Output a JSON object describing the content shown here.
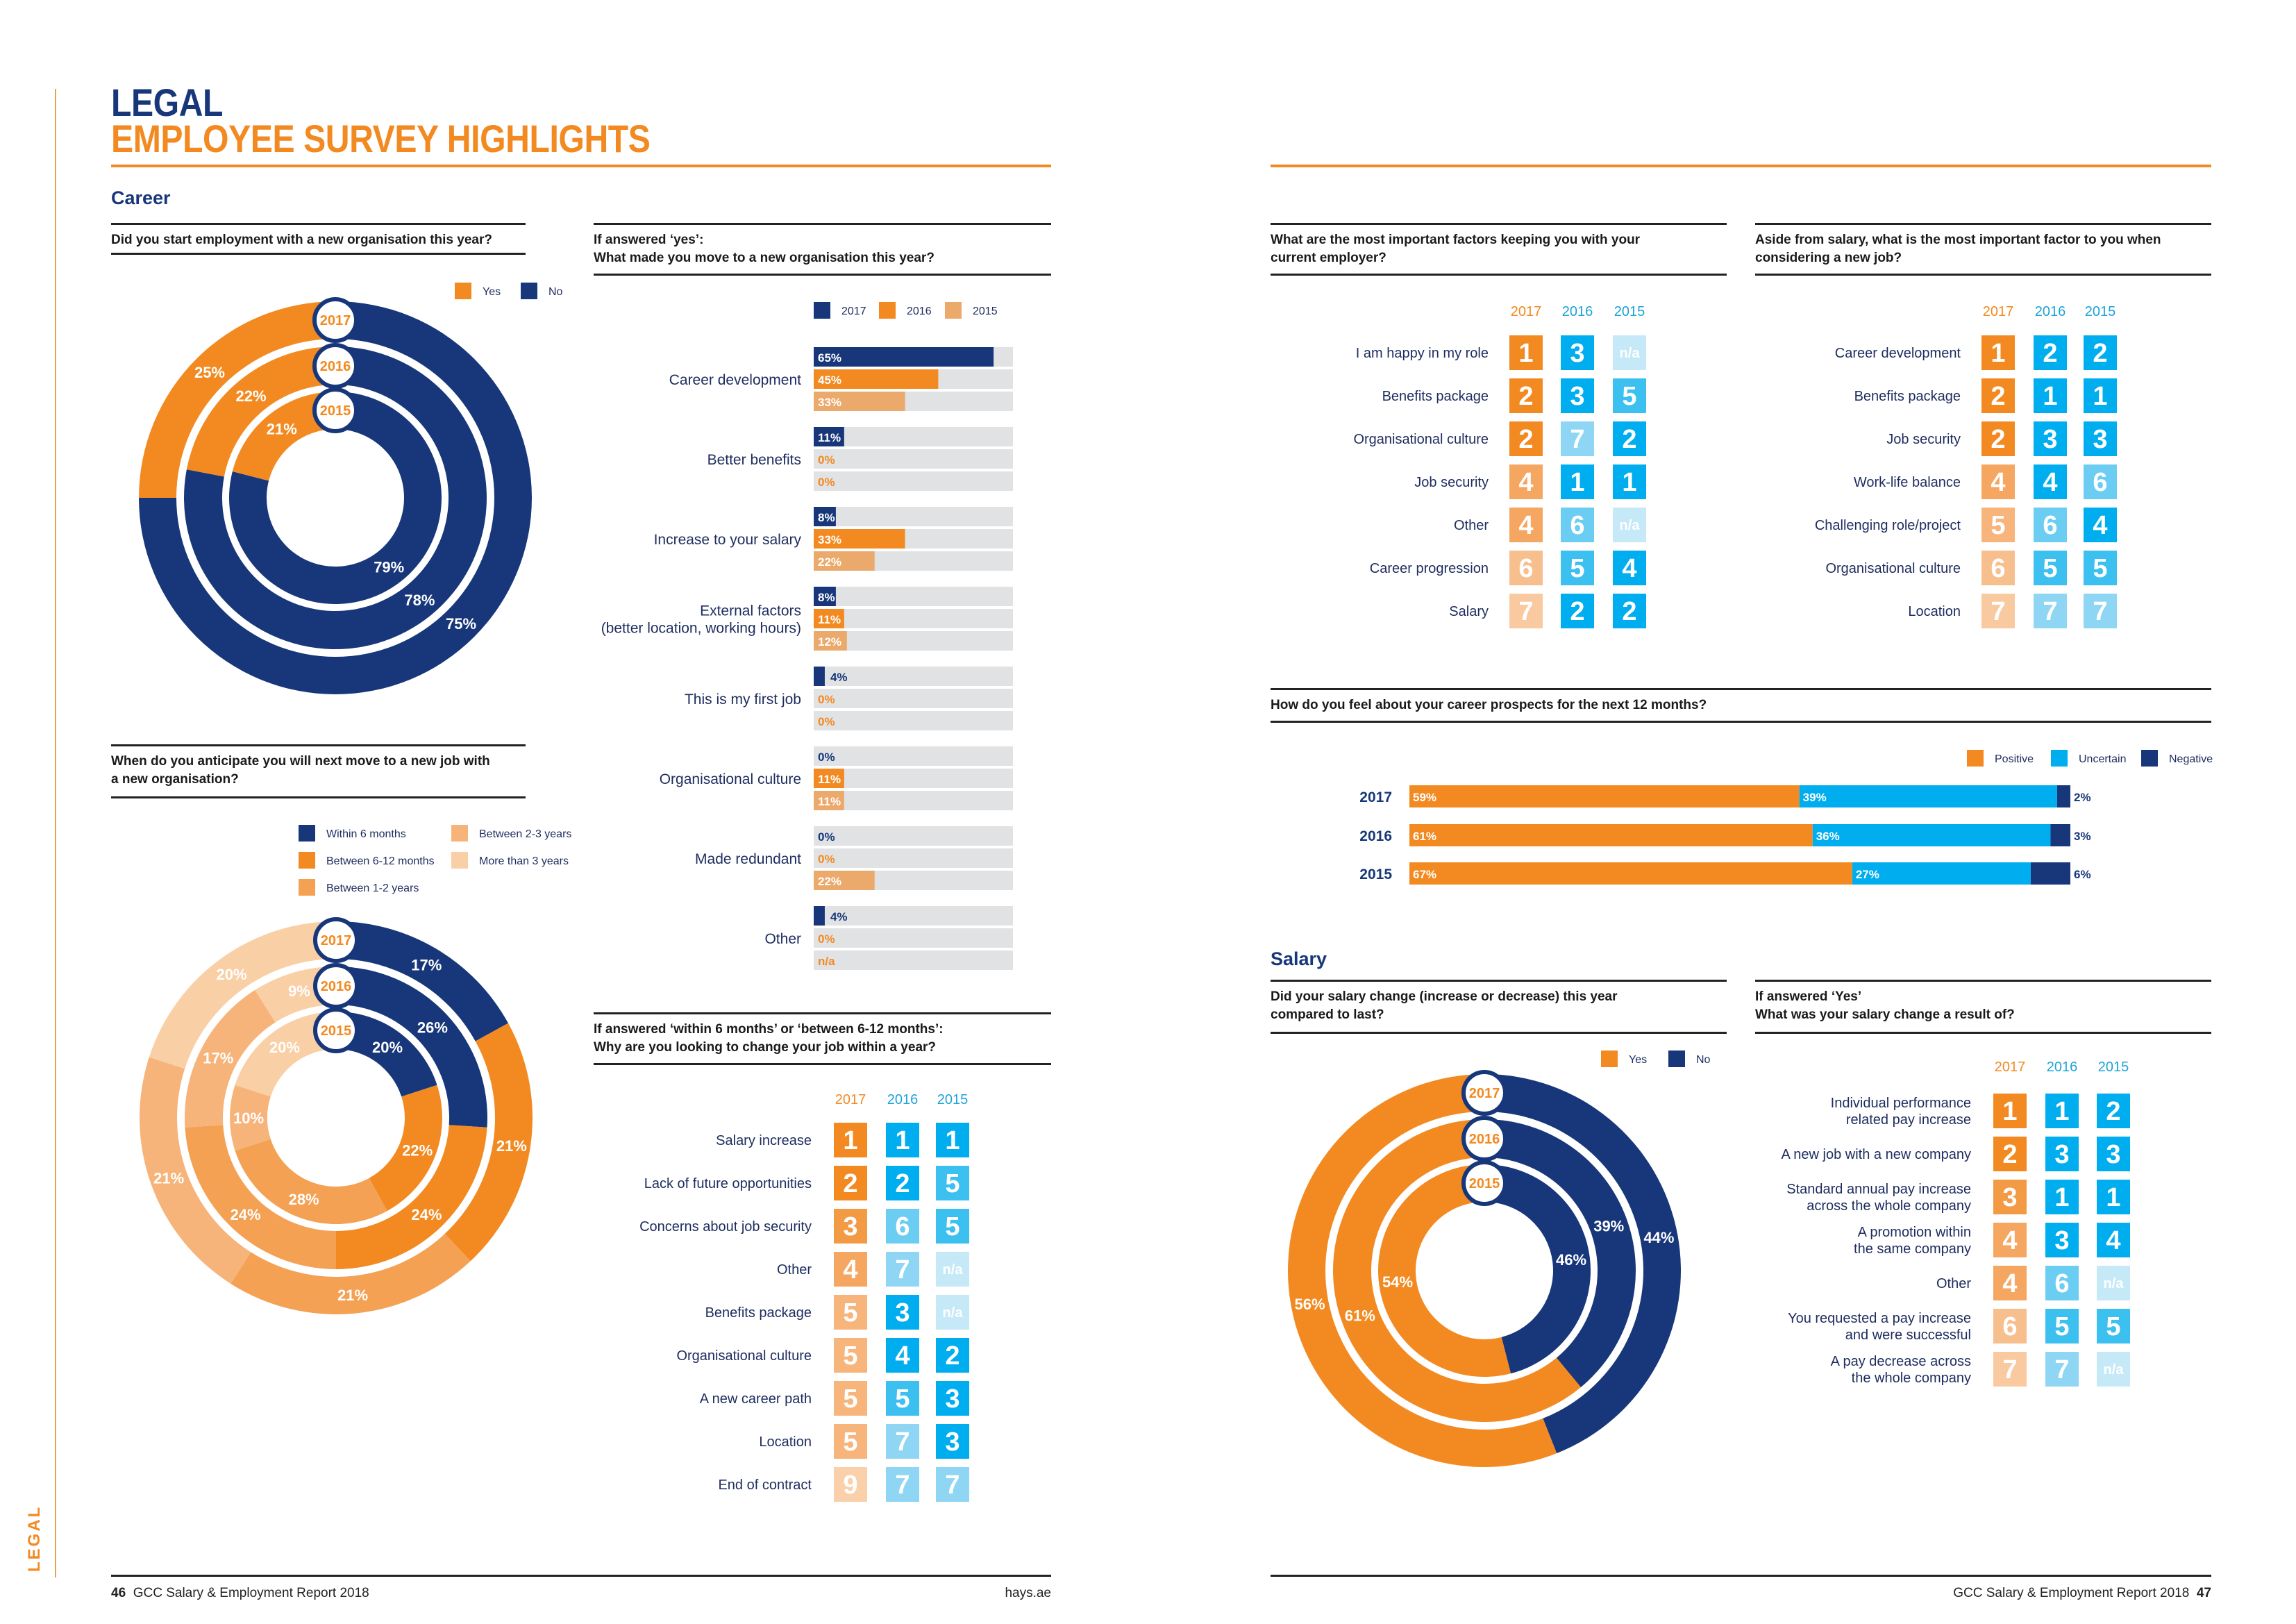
{
  "side_tab": "LEGAL",
  "header": {
    "title": "LEGAL",
    "subtitle": "EMPLOYEE SURVEY HIGHLIGHTS"
  },
  "sections": {
    "career": "Career",
    "salary": "Salary"
  },
  "footer": {
    "left_page": "46",
    "left_text": "GCC Salary & Employment Report 2018",
    "site": "hays.ae",
    "right_text": "GCC Salary & Employment Report 2018",
    "right_page": "47"
  },
  "colors": {
    "navy": "#17377a",
    "orange": "#f28a21",
    "light_orange": "#eba96c",
    "blue": "#00aeef",
    "track": "#e1e2e4",
    "timing": [
      "#17377a",
      "#f28a21",
      "#f4a153",
      "#f7b47a",
      "#f9cfa5"
    ],
    "rank_orange": {
      "1": "#f28a21",
      "2": "#f28a21",
      "3": "#f39a45",
      "4": "#f5a660",
      "5": "#f7b57c",
      "6": "#f8bf8e",
      "7": "#f9c9a0",
      "9": "#fad0aa"
    },
    "rank_blue": {
      "1": "#00aeef",
      "2": "#00aeef",
      "3": "#00aeef",
      "4": "#00aeef",
      "5": "#3cc0f0",
      "6": "#6ccdf2",
      "7": "#8fd6f4",
      "n/a": "#c6e9f8"
    }
  },
  "chart_data": [
    {
      "id": "new_org",
      "type": "pie",
      "variant": "nested-donut",
      "title": "Did you start employment with a new organisation this year?",
      "rings": [
        "2017",
        "2016",
        "2015"
      ],
      "series": [
        {
          "name": "Yes",
          "values": [
            25,
            22,
            21
          ]
        },
        {
          "name": "No",
          "values": [
            75,
            78,
            79
          ]
        }
      ],
      "legend": "top-right"
    },
    {
      "id": "move_reason",
      "type": "bar",
      "orientation": "horizontal",
      "title": "If answered ‘yes’:\nWhat made you move to a new organisation this year?",
      "categories": [
        "Career development",
        "Better benefits",
        "Increase to your salary",
        "External factors\n(better location, working hours)",
        "This is my first job",
        "Organisational culture",
        "Made redundant",
        "Other"
      ],
      "series": [
        {
          "name": "2017",
          "values": [
            65,
            11,
            8,
            8,
            4,
            0,
            0,
            4
          ]
        },
        {
          "name": "2016",
          "values": [
            45,
            0,
            33,
            11,
            0,
            11,
            0,
            0
          ]
        },
        {
          "name": "2015",
          "values": [
            33,
            0,
            22,
            12,
            0,
            11,
            22,
            "n/a"
          ]
        }
      ],
      "unit": "%",
      "xlim": [
        0,
        72
      ],
      "legend": "top"
    },
    {
      "id": "next_move",
      "type": "pie",
      "variant": "nested-donut",
      "title": "When do you anticipate you will next move to a new job with\na new organisation?",
      "rings": [
        "2017",
        "2016",
        "2015"
      ],
      "series": [
        {
          "name": "Within 6 months",
          "values": [
            17,
            26,
            20
          ]
        },
        {
          "name": "Between 6-12 months",
          "values": [
            21,
            24,
            22
          ]
        },
        {
          "name": "Between 1-2 years",
          "values": [
            21,
            24,
            28
          ]
        },
        {
          "name": "Between 2-3 years",
          "values": [
            21,
            17,
            10
          ]
        },
        {
          "name": "More than 3 years",
          "values": [
            20,
            9,
            20
          ]
        }
      ],
      "legend": "top-right"
    },
    {
      "id": "why_change",
      "type": "table",
      "title": "If answered ‘within 6 months’ or ‘between 6-12 months’:\nWhy are you looking to change your job within a year?",
      "columns": [
        "2017",
        "2016",
        "2015"
      ],
      "rows": [
        {
          "label": "Salary increase",
          "values": [
            "1",
            "1",
            "1"
          ]
        },
        {
          "label": "Lack of future opportunities",
          "values": [
            "2",
            "2",
            "5"
          ]
        },
        {
          "label": "Concerns about job security",
          "values": [
            "3",
            "6",
            "5"
          ]
        },
        {
          "label": "Other",
          "values": [
            "4",
            "7",
            "n/a"
          ]
        },
        {
          "label": "Benefits package",
          "values": [
            "5",
            "3",
            "n/a"
          ]
        },
        {
          "label": "Organisational culture",
          "values": [
            "5",
            "4",
            "2"
          ]
        },
        {
          "label": "A new career path",
          "values": [
            "5",
            "5",
            "3"
          ]
        },
        {
          "label": "Location",
          "values": [
            "5",
            "7",
            "3"
          ]
        },
        {
          "label": "End of contract",
          "values": [
            "9",
            "7",
            "7"
          ]
        }
      ]
    },
    {
      "id": "keeping_you",
      "type": "table",
      "title": "What are the most important factors keeping you with your\ncurrent employer?",
      "columns": [
        "2017",
        "2016",
        "2015"
      ],
      "rows": [
        {
          "label": "I am happy in my role",
          "values": [
            "1",
            "3",
            "n/a"
          ]
        },
        {
          "label": "Benefits package",
          "values": [
            "2",
            "3",
            "5"
          ]
        },
        {
          "label": "Organisational culture",
          "values": [
            "2",
            "7",
            "2"
          ]
        },
        {
          "label": "Job security",
          "values": [
            "4",
            "1",
            "1"
          ]
        },
        {
          "label": "Other",
          "values": [
            "4",
            "6",
            "n/a"
          ]
        },
        {
          "label": "Career progression",
          "values": [
            "6",
            "5",
            "4"
          ]
        },
        {
          "label": "Salary",
          "values": [
            "7",
            "2",
            "2"
          ]
        }
      ]
    },
    {
      "id": "aside_salary",
      "type": "table",
      "title": "Aside from salary, what is the most important factor to you when\nconsidering a new job?",
      "columns": [
        "2017",
        "2016",
        "2015"
      ],
      "rows": [
        {
          "label": "Career development",
          "values": [
            "1",
            "2",
            "2"
          ]
        },
        {
          "label": "Benefits package",
          "values": [
            "2",
            "1",
            "1"
          ]
        },
        {
          "label": "Job security",
          "values": [
            "2",
            "3",
            "3"
          ]
        },
        {
          "label": "Work-life balance",
          "values": [
            "4",
            "4",
            "6"
          ]
        },
        {
          "label": "Challenging role/project",
          "values": [
            "5",
            "6",
            "4"
          ]
        },
        {
          "label": "Organisational culture",
          "values": [
            "6",
            "5",
            "5"
          ]
        },
        {
          "label": "Location",
          "values": [
            "7",
            "7",
            "7"
          ]
        }
      ]
    },
    {
      "id": "prospects",
      "type": "bar",
      "orientation": "horizontal",
      "stacked": true,
      "title": "How do you feel about your career prospects for the next 12 months?",
      "categories": [
        "2017",
        "2016",
        "2015"
      ],
      "series": [
        {
          "name": "Positive",
          "values": [
            59,
            61,
            67
          ]
        },
        {
          "name": "Uncertain",
          "values": [
            39,
            36,
            27
          ]
        },
        {
          "name": "Negative",
          "values": [
            2,
            3,
            6
          ]
        }
      ],
      "unit": "%",
      "xlim": [
        0,
        100
      ],
      "legend": "top-right"
    },
    {
      "id": "salary_change",
      "type": "pie",
      "variant": "nested-donut",
      "title": "Did your salary change (increase or decrease) this year\ncompared to last?",
      "rings": [
        "2017",
        "2016",
        "2015"
      ],
      "series": [
        {
          "name": "Yes",
          "values": [
            56,
            61,
            54
          ]
        },
        {
          "name": "No",
          "values": [
            44,
            39,
            46
          ]
        }
      ],
      "legend": "top-right"
    },
    {
      "id": "salary_result",
      "type": "table",
      "title": "If answered ‘Yes’\nWhat was your salary change a result of?",
      "columns": [
        "2017",
        "2016",
        "2015"
      ],
      "rows": [
        {
          "label": "Individual performance\nrelated pay increase",
          "values": [
            "1",
            "1",
            "2"
          ]
        },
        {
          "label": "A new job with a new company",
          "values": [
            "2",
            "3",
            "3"
          ]
        },
        {
          "label": "Standard annual pay increase\nacross the whole company",
          "values": [
            "3",
            "1",
            "1"
          ]
        },
        {
          "label": "A promotion within\nthe same company",
          "values": [
            "4",
            "3",
            "4"
          ]
        },
        {
          "label": "Other",
          "values": [
            "4",
            "6",
            "n/a"
          ]
        },
        {
          "label": "You requested a pay increase\nand were successful",
          "values": [
            "6",
            "5",
            "5"
          ]
        },
        {
          "label": "A pay decrease across\nthe whole company",
          "values": [
            "7",
            "7",
            "n/a"
          ]
        }
      ]
    }
  ]
}
